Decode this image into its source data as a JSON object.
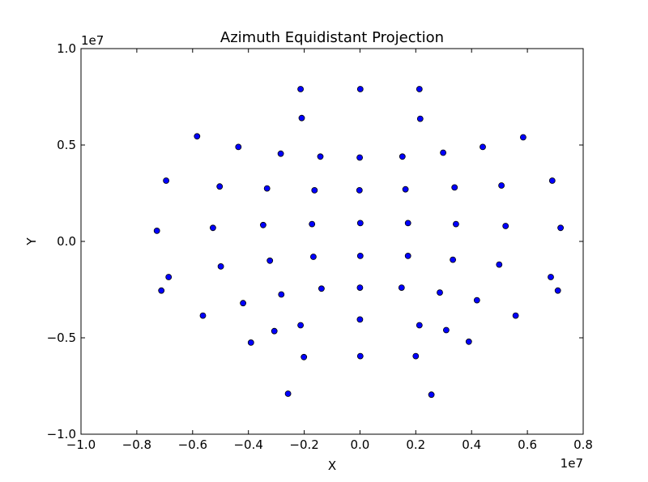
{
  "chart_data": {
    "type": "scatter",
    "title": "Azimuth Equidistant Projection",
    "xlabel": "X",
    "ylabel": "Y",
    "x_scale_label": "1e7",
    "y_scale_label": "1e7",
    "xlim": [
      -1.0,
      0.8
    ],
    "ylim": [
      -1.0,
      1.0
    ],
    "x_ticks": [
      -1.0,
      -0.8,
      -0.6,
      -0.4,
      -0.2,
      0.0,
      0.2,
      0.4,
      0.6,
      0.8
    ],
    "x_tick_labels": [
      "−1.0",
      "−0.8",
      "−0.6",
      "−0.4",
      "−0.2",
      "0.0",
      "0.2",
      "0.4",
      "0.6",
      "0.8"
    ],
    "y_ticks": [
      -1.0,
      -0.5,
      0.0,
      0.5,
      1.0
    ],
    "y_tick_labels": [
      "−1.0",
      "−0.5",
      "0.0",
      "0.5",
      "1.0"
    ],
    "grid": false,
    "marker_color": "#0000ff",
    "marker_edge_color": "#000000",
    "points": [
      [
        -0.213,
        0.79
      ],
      [
        0.001,
        0.79
      ],
      [
        0.213,
        0.79
      ],
      [
        -0.209,
        0.64
      ],
      [
        0.216,
        0.636
      ],
      [
        -0.584,
        0.545
      ],
      [
        0.585,
        0.54
      ],
      [
        -0.436,
        0.49
      ],
      [
        0.44,
        0.49
      ],
      [
        -0.284,
        0.455
      ],
      [
        0.298,
        0.46
      ],
      [
        -0.142,
        0.44
      ],
      [
        -0.001,
        0.435
      ],
      [
        0.152,
        0.44
      ],
      [
        -0.695,
        0.315
      ],
      [
        0.689,
        0.315
      ],
      [
        -0.503,
        0.285
      ],
      [
        0.507,
        0.29
      ],
      [
        -0.333,
        0.275
      ],
      [
        0.339,
        0.28
      ],
      [
        -0.163,
        0.265
      ],
      [
        -0.002,
        0.265
      ],
      [
        0.163,
        0.27
      ],
      [
        -0.728,
        0.055
      ],
      [
        0.719,
        0.07
      ],
      [
        -0.527,
        0.07
      ],
      [
        0.522,
        0.08
      ],
      [
        -0.347,
        0.085
      ],
      [
        0.344,
        0.09
      ],
      [
        -0.172,
        0.09
      ],
      [
        0.001,
        0.095
      ],
      [
        0.172,
        0.095
      ],
      [
        -0.167,
        -0.08
      ],
      [
        0.001,
        -0.075
      ],
      [
        0.172,
        -0.075
      ],
      [
        -0.323,
        -0.1
      ],
      [
        0.333,
        -0.095
      ],
      [
        -0.499,
        -0.13
      ],
      [
        0.499,
        -0.12
      ],
      [
        -0.686,
        -0.185
      ],
      [
        0.684,
        -0.185
      ],
      [
        -0.712,
        -0.255
      ],
      [
        0.709,
        -0.255
      ],
      [
        -0.138,
        -0.245
      ],
      [
        0.0,
        -0.24
      ],
      [
        0.149,
        -0.24
      ],
      [
        -0.282,
        -0.275
      ],
      [
        0.286,
        -0.265
      ],
      [
        -0.419,
        -0.32
      ],
      [
        0.419,
        -0.305
      ],
      [
        -0.563,
        -0.385
      ],
      [
        0.558,
        -0.385
      ],
      [
        -0.213,
        -0.435
      ],
      [
        0.0,
        -0.405
      ],
      [
        0.213,
        -0.435
      ],
      [
        -0.307,
        -0.465
      ],
      [
        0.309,
        -0.46
      ],
      [
        -0.391,
        -0.525
      ],
      [
        0.39,
        -0.52
      ],
      [
        -0.201,
        -0.6
      ],
      [
        0.001,
        -0.595
      ],
      [
        0.2,
        -0.595
      ],
      [
        -0.258,
        -0.79
      ],
      [
        0.256,
        -0.795
      ]
    ]
  }
}
